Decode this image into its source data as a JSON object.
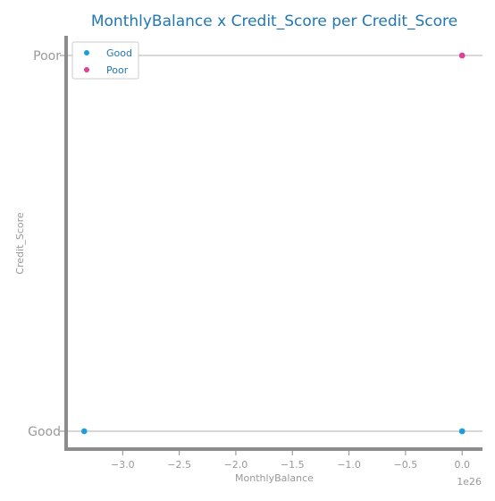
{
  "chart_data": {
    "type": "scatter",
    "title": "MonthlyBalance x Credit_Score per Credit_Score",
    "xlabel": "MonthlyBalance",
    "ylabel": "Credit_Score",
    "x_offset_label": "1e26",
    "x_tick_values": [
      -3.0,
      -2.5,
      -2.0,
      -1.5,
      -1.0,
      -0.5,
      0.0
    ],
    "x_tick_labels": [
      "−3.0",
      "−2.5",
      "−2.0",
      "−1.5",
      "−1.0",
      "−0.5",
      "0.0"
    ],
    "xlim": [
      -3.5,
      0.18
    ],
    "y_categories": [
      "Good",
      "Poor"
    ],
    "grid": "horizontal",
    "legend_position": "top-left",
    "series": [
      {
        "name": "Good",
        "color": "#1a9fdb",
        "points": [
          {
            "x": -3.34,
            "y": "Good"
          },
          {
            "x": 0.0,
            "y": "Good"
          },
          {
            "x": 0.0,
            "y": "Good"
          }
        ]
      },
      {
        "name": "Poor",
        "color": "#e0409a",
        "points": [
          {
            "x": 0.0,
            "y": "Poor"
          },
          {
            "x": 0.0,
            "y": "Poor"
          }
        ]
      }
    ]
  }
}
